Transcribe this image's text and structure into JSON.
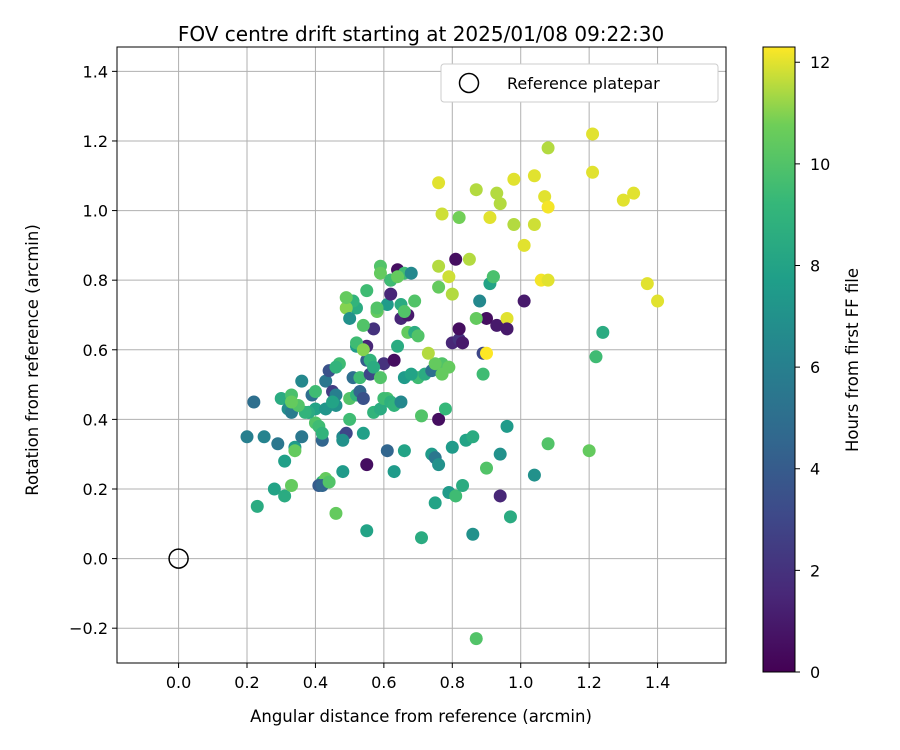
{
  "chart_data": {
    "type": "scatter",
    "title": "FOV centre drift starting at 2025/01/08 09:22:30",
    "xlabel": "Angular distance from reference (arcmin)",
    "ylabel": "Rotation from reference (arcmin)",
    "colorbar_label": "Hours from first FF file",
    "xlim": [
      -0.18,
      1.6
    ],
    "ylim": [
      -0.3,
      1.47
    ],
    "x_ticks": [
      "0.0",
      "0.2",
      "0.4",
      "0.6",
      "0.8",
      "1.0",
      "1.2",
      "1.4"
    ],
    "y_ticks": [
      "−0.2",
      "0.0",
      "0.2",
      "0.4",
      "0.6",
      "0.8",
      "1.0",
      "1.2",
      "1.4"
    ],
    "colorbar_ticks": [
      "0",
      "2",
      "4",
      "6",
      "8",
      "10",
      "12"
    ],
    "color_range": [
      0,
      12.3
    ],
    "colormap": "viridis",
    "grid": true,
    "legend_position": "upper-right",
    "reference": {
      "label": "Reference platepar",
      "x": 0.0,
      "y": 0.0
    },
    "points": [
      [
        0.2,
        0.35,
        6.0
      ],
      [
        0.22,
        0.45,
        5.0
      ],
      [
        0.25,
        0.35,
        6.2
      ],
      [
        0.29,
        0.33,
        5.5
      ],
      [
        0.31,
        0.28,
        7.8
      ],
      [
        0.3,
        0.46,
        8.5
      ],
      [
        0.32,
        0.43,
        6.8
      ],
      [
        0.33,
        0.47,
        9.8
      ],
      [
        0.34,
        0.32,
        7.5
      ],
      [
        0.33,
        0.42,
        5.8
      ],
      [
        0.36,
        0.51,
        6.5
      ],
      [
        0.36,
        0.35,
        5.5
      ],
      [
        0.38,
        0.42,
        6.0
      ],
      [
        0.39,
        0.47,
        5.0
      ],
      [
        0.4,
        0.43,
        8.0
      ],
      [
        0.4,
        0.39,
        10.0
      ],
      [
        0.41,
        0.38,
        9.5
      ],
      [
        0.42,
        0.34,
        4.5
      ],
      [
        0.42,
        0.36,
        9.0
      ],
      [
        0.43,
        0.51,
        5.5
      ],
      [
        0.43,
        0.43,
        7.2
      ],
      [
        0.44,
        0.54,
        3.5
      ],
      [
        0.45,
        0.48,
        2.5
      ],
      [
        0.46,
        0.47,
        6.0
      ],
      [
        0.46,
        0.44,
        7.0
      ],
      [
        0.48,
        0.35,
        6.5
      ],
      [
        0.49,
        0.36,
        3.0
      ],
      [
        0.5,
        0.4,
        9.5
      ],
      [
        0.5,
        0.46,
        10.0
      ],
      [
        0.51,
        0.52,
        5.0
      ],
      [
        0.52,
        0.61,
        7.5
      ],
      [
        0.52,
        0.47,
        9.0
      ],
      [
        0.53,
        0.52,
        9.5
      ],
      [
        0.53,
        0.48,
        4.5
      ],
      [
        0.54,
        0.46,
        3.5
      ],
      [
        0.54,
        0.36,
        7.8
      ],
      [
        0.55,
        0.61,
        1.5
      ],
      [
        0.55,
        0.57,
        4.0
      ],
      [
        0.56,
        0.53,
        3.0
      ],
      [
        0.57,
        0.66,
        2.0
      ],
      [
        0.57,
        0.42,
        9.0
      ],
      [
        0.58,
        0.71,
        10.5
      ],
      [
        0.59,
        0.43,
        8.5
      ],
      [
        0.6,
        0.56,
        2.0
      ],
      [
        0.61,
        0.73,
        7.5
      ],
      [
        0.61,
        0.46,
        9.8
      ],
      [
        0.62,
        0.8,
        2.5
      ],
      [
        0.62,
        0.76,
        1.5
      ],
      [
        0.63,
        0.57,
        0.5
      ],
      [
        0.64,
        0.61,
        8.5
      ],
      [
        0.64,
        0.83,
        0.5
      ],
      [
        0.65,
        0.69,
        1.5
      ],
      [
        0.66,
        0.82,
        9.5
      ],
      [
        0.67,
        0.7,
        1.0
      ],
      [
        0.67,
        0.65,
        10.5
      ],
      [
        0.68,
        0.82,
        6.5
      ],
      [
        0.69,
        0.74,
        10.0
      ],
      [
        0.7,
        0.52,
        9.5
      ],
      [
        0.71,
        0.41,
        10.0
      ],
      [
        0.72,
        0.53,
        8.5
      ],
      [
        0.74,
        0.3,
        7.5
      ],
      [
        0.75,
        0.29,
        5.5
      ],
      [
        0.76,
        0.4,
        0.5
      ],
      [
        0.77,
        0.56,
        10.0
      ],
      [
        0.78,
        0.43,
        9.2
      ],
      [
        0.79,
        0.55,
        10.5
      ],
      [
        0.8,
        0.32,
        7.5
      ],
      [
        0.8,
        0.62,
        1.5
      ],
      [
        0.81,
        0.86,
        0.5
      ],
      [
        0.82,
        0.63,
        2.0
      ],
      [
        0.82,
        0.66,
        0.5
      ],
      [
        0.83,
        0.62,
        1.0
      ],
      [
        0.84,
        0.34,
        8.0
      ],
      [
        0.85,
        0.86,
        11.5
      ],
      [
        0.86,
        0.35,
        8.5
      ],
      [
        0.88,
        0.74,
        6.5
      ],
      [
        0.89,
        0.59,
        3.0
      ],
      [
        0.89,
        0.53,
        9.5
      ],
      [
        0.9,
        0.69,
        0.5
      ],
      [
        0.91,
        0.79,
        8.0
      ],
      [
        0.92,
        0.81,
        10.0
      ],
      [
        0.93,
        0.67,
        1.0
      ],
      [
        0.94,
        0.18,
        1.5
      ],
      [
        0.96,
        0.69,
        12.0
      ],
      [
        0.96,
        0.66,
        1.0
      ],
      [
        0.97,
        0.12,
        8.5
      ],
      [
        1.01,
        0.74,
        1.0
      ],
      [
        1.04,
        0.24,
        7.0
      ],
      [
        1.06,
        0.8,
        12.2
      ],
      [
        1.08,
        0.8,
        12.0
      ],
      [
        1.08,
        0.33,
        10.0
      ],
      [
        1.2,
        0.31,
        10.5
      ],
      [
        1.22,
        0.58,
        9.5
      ],
      [
        1.24,
        0.65,
        8.5
      ],
      [
        0.23,
        0.15,
        8.5
      ],
      [
        0.28,
        0.2,
        8.0
      ],
      [
        0.31,
        0.18,
        8.5
      ],
      [
        0.33,
        0.21,
        10.5
      ],
      [
        0.42,
        0.22,
        9.0
      ],
      [
        0.43,
        0.23,
        10.5
      ],
      [
        0.41,
        0.21,
        4.0
      ],
      [
        0.42,
        0.21,
        4.5
      ],
      [
        0.44,
        0.22,
        10.0
      ],
      [
        0.46,
        0.13,
        10.5
      ],
      [
        0.48,
        0.25,
        7.5
      ],
      [
        0.55,
        0.08,
        8.0
      ],
      [
        0.55,
        0.27,
        0.5
      ],
      [
        0.61,
        0.31,
        4.5
      ],
      [
        0.63,
        0.25,
        7.5
      ],
      [
        0.66,
        0.31,
        8.0
      ],
      [
        0.71,
        0.06,
        8.5
      ],
      [
        0.75,
        0.16,
        8.0
      ],
      [
        0.76,
        0.27,
        7.0
      ],
      [
        0.79,
        0.19,
        7.5
      ],
      [
        0.81,
        0.18,
        9.5
      ],
      [
        0.83,
        0.21,
        8.5
      ],
      [
        0.86,
        0.07,
        7.0
      ],
      [
        0.87,
        -0.23,
        10.0
      ],
      [
        0.9,
        0.26,
        10.0
      ],
      [
        0.94,
        0.3,
        7.0
      ],
      [
        0.96,
        0.38,
        7.5
      ],
      [
        0.74,
        0.54,
        5.0
      ],
      [
        0.75,
        0.56,
        10.5
      ],
      [
        0.77,
        0.53,
        10.5
      ],
      [
        0.73,
        0.59,
        11.5
      ],
      [
        0.76,
        0.78,
        10.5
      ],
      [
        0.79,
        0.81,
        11.8
      ],
      [
        0.8,
        0.76,
        11.5
      ],
      [
        0.76,
        0.84,
        11.5
      ],
      [
        0.77,
        0.99,
        11.8
      ],
      [
        0.76,
        1.08,
        12.0
      ],
      [
        0.82,
        0.98,
        10.8
      ],
      [
        0.87,
        1.06,
        11.5
      ],
      [
        0.91,
        0.98,
        12.0
      ],
      [
        0.93,
        1.05,
        11.5
      ],
      [
        0.94,
        1.02,
        11.5
      ],
      [
        0.98,
        0.96,
        11.5
      ],
      [
        0.98,
        1.09,
        12.0
      ],
      [
        1.01,
        0.9,
        12.0
      ],
      [
        1.04,
        0.96,
        11.8
      ],
      [
        1.04,
        1.1,
        12.0
      ],
      [
        1.07,
        1.04,
        12.0
      ],
      [
        1.08,
        1.01,
        12.2
      ],
      [
        1.08,
        1.18,
        11.5
      ],
      [
        1.21,
        1.11,
        12.0
      ],
      [
        1.21,
        1.22,
        12.0
      ],
      [
        1.3,
        1.03,
        12.0
      ],
      [
        1.33,
        1.05,
        12.0
      ],
      [
        1.37,
        0.79,
        12.0
      ],
      [
        1.4,
        0.74,
        12.0
      ],
      [
        0.9,
        0.59,
        12.3
      ],
      [
        0.87,
        0.69,
        10.5
      ],
      [
        0.92,
        0.81,
        9.8
      ],
      [
        0.59,
        0.84,
        10.0
      ],
      [
        0.59,
        0.82,
        10.5
      ],
      [
        0.58,
        0.72,
        10.0
      ],
      [
        0.55,
        0.77,
        9.5
      ],
      [
        0.52,
        0.72,
        8.5
      ],
      [
        0.51,
        0.74,
        9.0
      ],
      [
        0.49,
        0.72,
        11.0
      ],
      [
        0.49,
        0.75,
        10.5
      ],
      [
        0.5,
        0.69,
        7.0
      ],
      [
        0.54,
        0.67,
        10.0
      ],
      [
        0.52,
        0.62,
        9.5
      ],
      [
        0.54,
        0.6,
        11.0
      ],
      [
        0.56,
        0.57,
        9.0
      ],
      [
        0.57,
        0.55,
        8.5
      ],
      [
        0.59,
        0.52,
        10.0
      ],
      [
        0.6,
        0.46,
        9.5
      ],
      [
        0.62,
        0.45,
        8.8
      ],
      [
        0.63,
        0.44,
        9.0
      ],
      [
        0.65,
        0.45,
        6.5
      ],
      [
        0.66,
        0.52,
        7.5
      ],
      [
        0.68,
        0.53,
        8.0
      ],
      [
        0.69,
        0.65,
        8.5
      ],
      [
        0.7,
        0.64,
        10.0
      ],
      [
        0.62,
        0.8,
        9.5
      ],
      [
        0.64,
        0.81,
        10.5
      ],
      [
        0.65,
        0.73,
        8.5
      ],
      [
        0.66,
        0.71,
        10.0
      ],
      [
        0.47,
        0.56,
        9.5
      ],
      [
        0.46,
        0.55,
        9.0
      ],
      [
        0.45,
        0.45,
        8.0
      ],
      [
        0.4,
        0.48,
        9.5
      ],
      [
        0.38,
        0.42,
        8.5
      ],
      [
        0.37,
        0.42,
        9.0
      ],
      [
        0.35,
        0.44,
        10.0
      ],
      [
        0.33,
        0.45,
        10.5
      ],
      [
        0.34,
        0.31,
        10.5
      ],
      [
        0.48,
        0.34,
        7.0
      ]
    ]
  }
}
